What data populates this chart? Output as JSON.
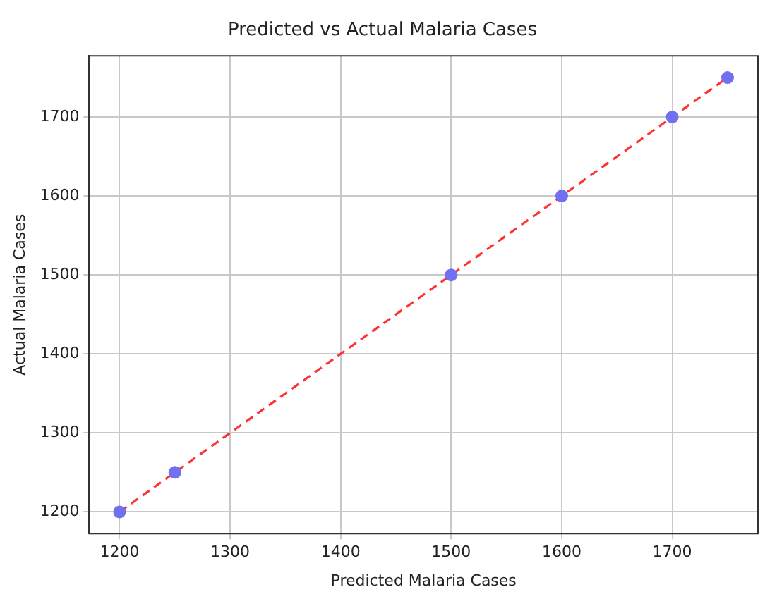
{
  "chart_data": {
    "type": "scatter",
    "title": "Predicted vs Actual Malaria Cases",
    "xlabel": "Predicted Malaria Cases",
    "ylabel": "Actual Malaria Cases",
    "x": [
      1200,
      1250,
      1500,
      1600,
      1700,
      1750
    ],
    "series": [
      {
        "type": "scatter",
        "color": "#7070f0",
        "marker": "circle",
        "values": [
          1200,
          1250,
          1500,
          1600,
          1700,
          1750
        ]
      },
      {
        "type": "line",
        "color": "#ff3333",
        "line_style": "dashed",
        "marker": "none",
        "x": [
          1200,
          1750
        ],
        "values": [
          1200,
          1750
        ]
      }
    ],
    "xlim": [
      1172.5,
      1777.5
    ],
    "xticks": [
      1200,
      1300,
      1400,
      1500,
      1600,
      1700
    ],
    "ylim": [
      1172.5,
      1777.5
    ],
    "yticks": [
      1200,
      1300,
      1400,
      1500,
      1600,
      1700
    ],
    "grid": true,
    "legend": false
  }
}
